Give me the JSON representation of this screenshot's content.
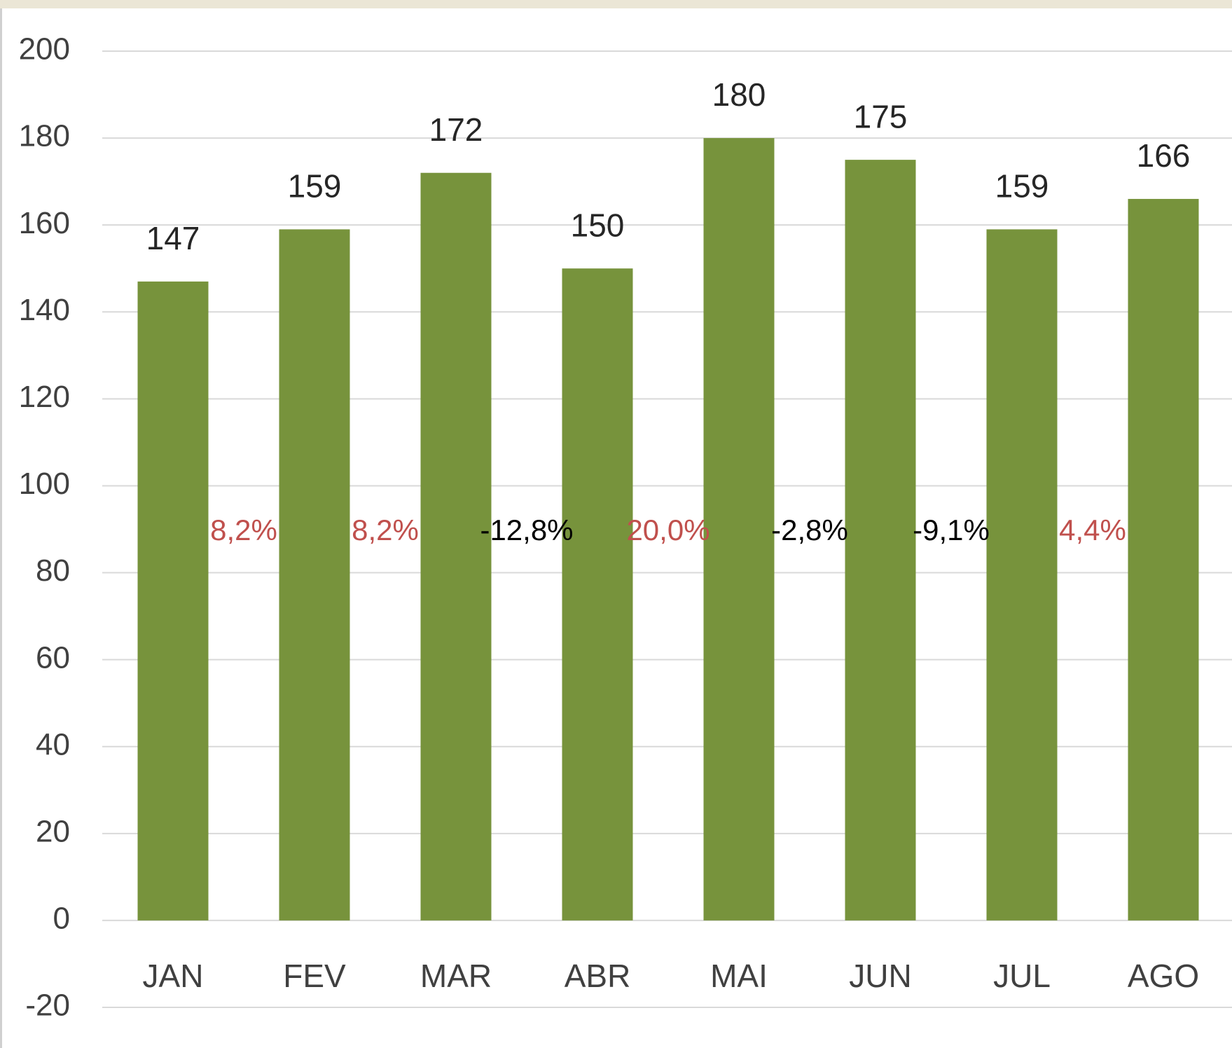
{
  "chart_data": {
    "type": "bar",
    "categories": [
      "JAN",
      "FEV",
      "MAR",
      "ABR",
      "MAI",
      "JUN",
      "JUL",
      "AGO"
    ],
    "values": [
      147,
      159,
      172,
      150,
      180,
      175,
      159,
      166
    ],
    "color": "#77933c",
    "ylim": [
      -20,
      200
    ],
    "yticks": [
      -20,
      0,
      20,
      40,
      60,
      80,
      100,
      120,
      140,
      160,
      180,
      200
    ],
    "grid": true,
    "annotations": [
      "8,2%",
      "8,2%",
      "-12,8%",
      "20,0%",
      "-2,8%",
      "-9,1%",
      "4,4%"
    ],
    "annotation_colors": [
      "#c0504d",
      "#c0504d",
      "#000000",
      "#c0504d",
      "#000000",
      "#000000",
      "#c0504d"
    ]
  }
}
